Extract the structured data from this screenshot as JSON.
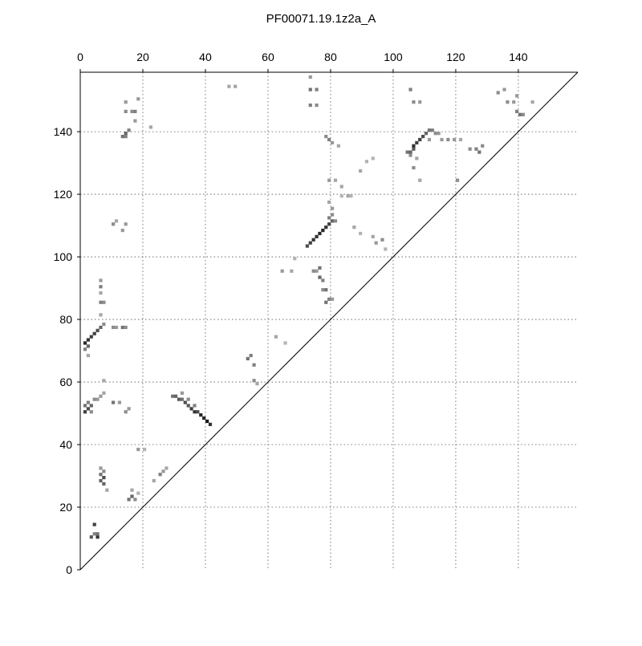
{
  "chart_data": {
    "type": "heatmap",
    "subtype": "contact-map-upper-triangle",
    "title": "PF00071.19.1z2a_A",
    "xlabel": "",
    "ylabel": "",
    "x_axis_position": "top",
    "xlim": [
      0,
      159
    ],
    "ylim": [
      0,
      159
    ],
    "x_ticks": [
      0,
      20,
      40,
      60,
      80,
      100,
      120,
      140
    ],
    "y_ticks": [
      0,
      20,
      40,
      60,
      80,
      100,
      120,
      140
    ],
    "grid": true,
    "grid_style": "dotted",
    "colormap": "grayscale (white = 0, black = 1)",
    "diagonal_line": true,
    "cells": [
      [
        3,
        10,
        0.65
      ],
      [
        4,
        11,
        0.5
      ],
      [
        5,
        10,
        0.8
      ],
      [
        4,
        14,
        0.75
      ],
      [
        5,
        11,
        0.55
      ],
      [
        6,
        28,
        0.6
      ],
      [
        7,
        29,
        0.7
      ],
      [
        6,
        30,
        0.55
      ],
      [
        7,
        31,
        0.45
      ],
      [
        7,
        27,
        0.6
      ],
      [
        8,
        25,
        0.35
      ],
      [
        6,
        32,
        0.4
      ],
      [
        15,
        22,
        0.55
      ],
      [
        16,
        23,
        0.6
      ],
      [
        17,
        22,
        0.45
      ],
      [
        16,
        25,
        0.35
      ],
      [
        18,
        24,
        0.3
      ],
      [
        23,
        28,
        0.35
      ],
      [
        25,
        30,
        0.5
      ],
      [
        26,
        31,
        0.4
      ],
      [
        27,
        32,
        0.35
      ],
      [
        18,
        38,
        0.4
      ],
      [
        20,
        38,
        0.3
      ],
      [
        1,
        50,
        0.75
      ],
      [
        2,
        51,
        0.7
      ],
      [
        3,
        52,
        0.6
      ],
      [
        2,
        53,
        0.5
      ],
      [
        4,
        54,
        0.45
      ],
      [
        5,
        54,
        0.4
      ],
      [
        6,
        55,
        0.4
      ],
      [
        7,
        56,
        0.35
      ],
      [
        1,
        52,
        0.55
      ],
      [
        3,
        50,
        0.45
      ],
      [
        10,
        53,
        0.55
      ],
      [
        12,
        53,
        0.4
      ],
      [
        14,
        50,
        0.45
      ],
      [
        15,
        51,
        0.4
      ],
      [
        7,
        60,
        0.35
      ],
      [
        29,
        55,
        0.55
      ],
      [
        30,
        55,
        0.6
      ],
      [
        31,
        54,
        0.65
      ],
      [
        32,
        54,
        0.55
      ],
      [
        33,
        53,
        0.7
      ],
      [
        34,
        52,
        0.65
      ],
      [
        35,
        51,
        0.75
      ],
      [
        36,
        50,
        0.8
      ],
      [
        37,
        50,
        0.7
      ],
      [
        38,
        49,
        0.85
      ],
      [
        39,
        48,
        0.85
      ],
      [
        40,
        47,
        0.9
      ],
      [
        41,
        46,
        0.8
      ],
      [
        32,
        56,
        0.4
      ],
      [
        34,
        54,
        0.45
      ],
      [
        36,
        52,
        0.5
      ],
      [
        53,
        67,
        0.55
      ],
      [
        54,
        68,
        0.5
      ],
      [
        55,
        65,
        0.5
      ],
      [
        55,
        60,
        0.45
      ],
      [
        56,
        59,
        0.35
      ],
      [
        1,
        72,
        0.85
      ],
      [
        2,
        73,
        0.8
      ],
      [
        3,
        74,
        0.75
      ],
      [
        4,
        75,
        0.75
      ],
      [
        5,
        76,
        0.7
      ],
      [
        6,
        77,
        0.6
      ],
      [
        7,
        78,
        0.45
      ],
      [
        1,
        70,
        0.5
      ],
      [
        2,
        68,
        0.35
      ],
      [
        2,
        71,
        0.6
      ],
      [
        10,
        77,
        0.45
      ],
      [
        11,
        77,
        0.4
      ],
      [
        13,
        77,
        0.55
      ],
      [
        14,
        77,
        0.45
      ],
      [
        6,
        81,
        0.35
      ],
      [
        6,
        85,
        0.5
      ],
      [
        7,
        85,
        0.45
      ],
      [
        6,
        88,
        0.35
      ],
      [
        6,
        90,
        0.5
      ],
      [
        6,
        92,
        0.4
      ],
      [
        10,
        110,
        0.45
      ],
      [
        11,
        111,
        0.35
      ],
      [
        13,
        108,
        0.4
      ],
      [
        14,
        110,
        0.4
      ],
      [
        13,
        138,
        0.55
      ],
      [
        14,
        139,
        0.6
      ],
      [
        14,
        138,
        0.5
      ],
      [
        15,
        140,
        0.5
      ],
      [
        14,
        146,
        0.45
      ],
      [
        14,
        149,
        0.4
      ],
      [
        17,
        143,
        0.4
      ],
      [
        17,
        146,
        0.5
      ],
      [
        18,
        150,
        0.4
      ],
      [
        16,
        146,
        0.45
      ],
      [
        22,
        141,
        0.35
      ],
      [
        47,
        154,
        0.35
      ],
      [
        49,
        154,
        0.35
      ],
      [
        62,
        74,
        0.35
      ],
      [
        65,
        72,
        0.3
      ],
      [
        64,
        95,
        0.4
      ],
      [
        67,
        95,
        0.35
      ],
      [
        68,
        99,
        0.3
      ],
      [
        72,
        103,
        0.7
      ],
      [
        73,
        104,
        0.75
      ],
      [
        74,
        105,
        0.8
      ],
      [
        75,
        106,
        0.8
      ],
      [
        76,
        107,
        0.85
      ],
      [
        77,
        108,
        0.85
      ],
      [
        78,
        109,
        0.8
      ],
      [
        79,
        110,
        0.75
      ],
      [
        80,
        111,
        0.6
      ],
      [
        79,
        112,
        0.5
      ],
      [
        80,
        113,
        0.45
      ],
      [
        80,
        115,
        0.4
      ],
      [
        79,
        117,
        0.35
      ],
      [
        81,
        111,
        0.45
      ],
      [
        76,
        93,
        0.6
      ],
      [
        77,
        92,
        0.5
      ],
      [
        78,
        89,
        0.55
      ],
      [
        77,
        89,
        0.45
      ],
      [
        78,
        85,
        0.55
      ],
      [
        79,
        86,
        0.5
      ],
      [
        80,
        86,
        0.4
      ],
      [
        74,
        95,
        0.45
      ],
      [
        75,
        95,
        0.4
      ],
      [
        76,
        96,
        0.55
      ],
      [
        79,
        124,
        0.4
      ],
      [
        81,
        124,
        0.35
      ],
      [
        83,
        122,
        0.35
      ],
      [
        83,
        119,
        0.3
      ],
      [
        85,
        119,
        0.35
      ],
      [
        86,
        119,
        0.3
      ],
      [
        78,
        138,
        0.45
      ],
      [
        79,
        137,
        0.5
      ],
      [
        80,
        136,
        0.4
      ],
      [
        82,
        135,
        0.35
      ],
      [
        73,
        157,
        0.4
      ],
      [
        73,
        153,
        0.55
      ],
      [
        75,
        153,
        0.5
      ],
      [
        73,
        148,
        0.5
      ],
      [
        75,
        148,
        0.45
      ],
      [
        87,
        109,
        0.35
      ],
      [
        89,
        107,
        0.3
      ],
      [
        93,
        106,
        0.35
      ],
      [
        94,
        104,
        0.4
      ],
      [
        96,
        105,
        0.45
      ],
      [
        97,
        102,
        0.3
      ],
      [
        89,
        127,
        0.35
      ],
      [
        91,
        130,
        0.3
      ],
      [
        93,
        131,
        0.3
      ],
      [
        104,
        133,
        0.55
      ],
      [
        105,
        133,
        0.6
      ],
      [
        106,
        134,
        0.65
      ],
      [
        106,
        135,
        0.8
      ],
      [
        107,
        136,
        0.75
      ],
      [
        108,
        137,
        0.75
      ],
      [
        109,
        138,
        0.7
      ],
      [
        110,
        139,
        0.6
      ],
      [
        111,
        140,
        0.55
      ],
      [
        112,
        140,
        0.5
      ],
      [
        113,
        139,
        0.45
      ],
      [
        114,
        139,
        0.4
      ],
      [
        105,
        132,
        0.45
      ],
      [
        107,
        131,
        0.35
      ],
      [
        111,
        137,
        0.4
      ],
      [
        106,
        128,
        0.45
      ],
      [
        108,
        124,
        0.35
      ],
      [
        115,
        137,
        0.4
      ],
      [
        117,
        137,
        0.45
      ],
      [
        119,
        137,
        0.4
      ],
      [
        121,
        137,
        0.35
      ],
      [
        120,
        124,
        0.45
      ],
      [
        124,
        134,
        0.45
      ],
      [
        126,
        134,
        0.5
      ],
      [
        127,
        133,
        0.55
      ],
      [
        128,
        135,
        0.45
      ],
      [
        105,
        153,
        0.5
      ],
      [
        106,
        149,
        0.45
      ],
      [
        108,
        149,
        0.4
      ],
      [
        133,
        152,
        0.45
      ],
      [
        135,
        153,
        0.4
      ],
      [
        136,
        149,
        0.45
      ],
      [
        138,
        149,
        0.4
      ],
      [
        139,
        146,
        0.5
      ],
      [
        140,
        145,
        0.55
      ],
      [
        141,
        145,
        0.45
      ],
      [
        139,
        151,
        0.4
      ],
      [
        144,
        149,
        0.35
      ]
    ]
  }
}
